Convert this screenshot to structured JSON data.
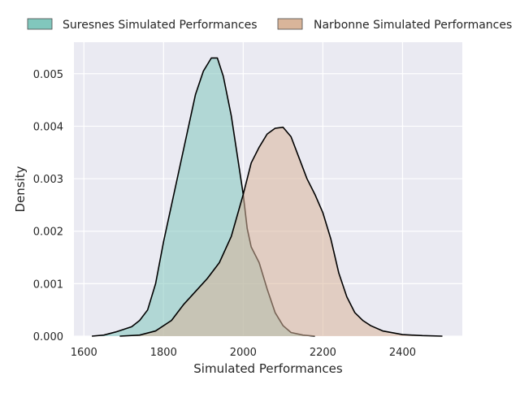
{
  "chart_data": {
    "type": "area",
    "title": "",
    "xlabel": "Simulated Performances",
    "ylabel": "Density",
    "xlim": [
      1575,
      2550
    ],
    "ylim": [
      0,
      0.0056
    ],
    "x_ticks": [
      1600,
      1800,
      2000,
      2200,
      2400
    ],
    "y_ticks": [
      0.0,
      0.001,
      0.002,
      0.003,
      0.004,
      0.005
    ],
    "x_tick_labels": [
      "1600",
      "1800",
      "2000",
      "2200",
      "2400"
    ],
    "y_tick_labels": [
      "0.000",
      "0.001",
      "0.002",
      "0.003",
      "0.004",
      "0.005"
    ],
    "grid": true,
    "legend_position": "top",
    "series": [
      {
        "name": "Suresnes Simulated Performances",
        "color": "#81c7bd",
        "points": [
          [
            1620,
            0.0
          ],
          [
            1650,
            2e-05
          ],
          [
            1680,
            8e-05
          ],
          [
            1700,
            0.00013
          ],
          [
            1720,
            0.00018
          ],
          [
            1740,
            0.0003
          ],
          [
            1760,
            0.0005
          ],
          [
            1780,
            0.001
          ],
          [
            1800,
            0.0018
          ],
          [
            1820,
            0.0025
          ],
          [
            1840,
            0.0032
          ],
          [
            1860,
            0.0039
          ],
          [
            1880,
            0.0046
          ],
          [
            1900,
            0.00505
          ],
          [
            1920,
            0.0053
          ],
          [
            1935,
            0.0053
          ],
          [
            1950,
            0.00495
          ],
          [
            1970,
            0.0042
          ],
          [
            1990,
            0.0032
          ],
          [
            2000,
            0.0027
          ],
          [
            2010,
            0.00205
          ],
          [
            2020,
            0.0017
          ],
          [
            2040,
            0.0014
          ],
          [
            2060,
            0.0009
          ],
          [
            2080,
            0.00045
          ],
          [
            2100,
            0.0002
          ],
          [
            2120,
            7e-05
          ],
          [
            2150,
            2e-05
          ],
          [
            2180,
            0.0
          ]
        ]
      },
      {
        "name": "Narbonne Simulated Performances",
        "color": "#d9b59a",
        "points": [
          [
            1690,
            0.0
          ],
          [
            1740,
            2e-05
          ],
          [
            1780,
            0.0001
          ],
          [
            1820,
            0.0003
          ],
          [
            1850,
            0.0006
          ],
          [
            1880,
            0.00085
          ],
          [
            1910,
            0.0011
          ],
          [
            1940,
            0.0014
          ],
          [
            1970,
            0.0019
          ],
          [
            2000,
            0.0027
          ],
          [
            2020,
            0.0033
          ],
          [
            2040,
            0.0036
          ],
          [
            2060,
            0.00385
          ],
          [
            2080,
            0.00396
          ],
          [
            2100,
            0.00398
          ],
          [
            2120,
            0.0038
          ],
          [
            2140,
            0.0034
          ],
          [
            2160,
            0.003
          ],
          [
            2180,
            0.0027
          ],
          [
            2200,
            0.00235
          ],
          [
            2220,
            0.00185
          ],
          [
            2240,
            0.0012
          ],
          [
            2260,
            0.00075
          ],
          [
            2280,
            0.00045
          ],
          [
            2300,
            0.0003
          ],
          [
            2320,
            0.0002
          ],
          [
            2350,
            0.0001
          ],
          [
            2400,
            3e-05
          ],
          [
            2450,
            1e-05
          ],
          [
            2500,
            0.0
          ]
        ]
      }
    ]
  }
}
